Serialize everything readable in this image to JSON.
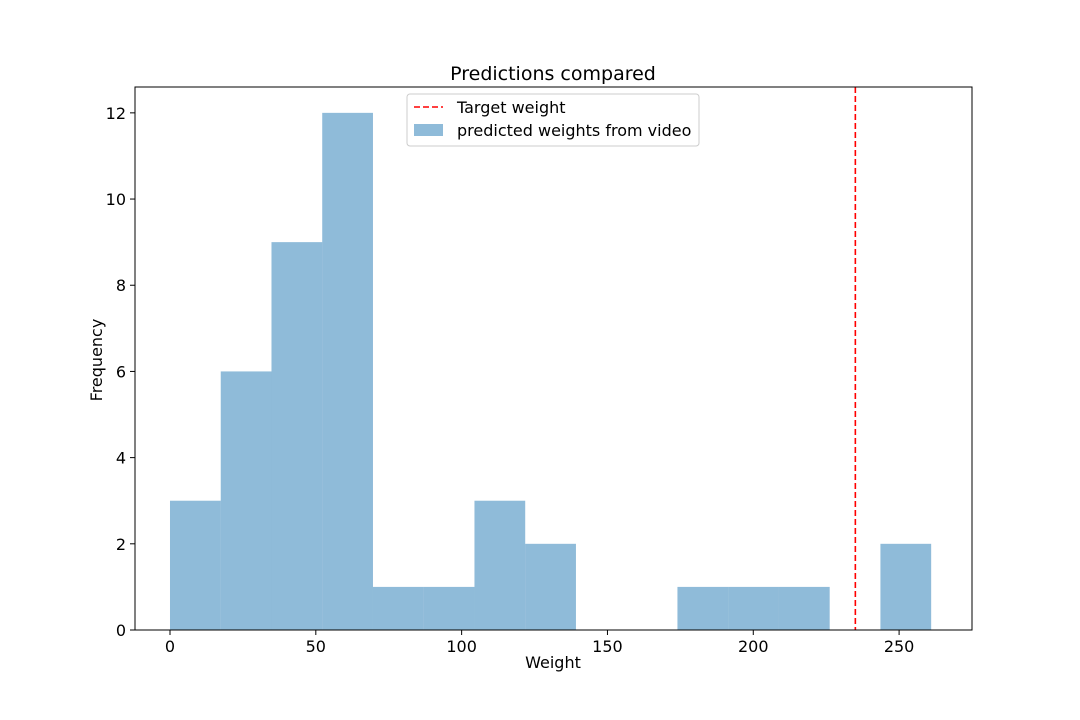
{
  "chart_data": {
    "type": "bar",
    "title": "Predictions compared",
    "xlabel": "Weight",
    "ylabel": "Frequency",
    "xlim": [
      -12,
      275
    ],
    "ylim": [
      0,
      12.6
    ],
    "xticks": [
      0,
      50,
      100,
      150,
      200,
      250
    ],
    "yticks": [
      0,
      2,
      4,
      6,
      8,
      10,
      12
    ],
    "grid": false,
    "legend_position": "top-center",
    "histogram": {
      "name": "predicted weights from video",
      "color": "#1f77b4",
      "opacity": 0.5,
      "bin_edges": [
        0,
        17.4,
        34.8,
        52.2,
        69.6,
        87.0,
        104.4,
        121.8,
        139.2,
        156.6,
        174.0,
        191.4,
        208.8,
        226.2,
        243.6,
        261.0
      ],
      "counts": [
        3,
        6,
        9,
        12,
        1,
        1,
        3,
        2,
        0,
        0,
        1,
        1,
        1,
        0,
        2
      ]
    },
    "reference_lines": [
      {
        "name": "Target weight",
        "x": 235,
        "color": "#ff0000",
        "style": "dashed"
      }
    ]
  }
}
